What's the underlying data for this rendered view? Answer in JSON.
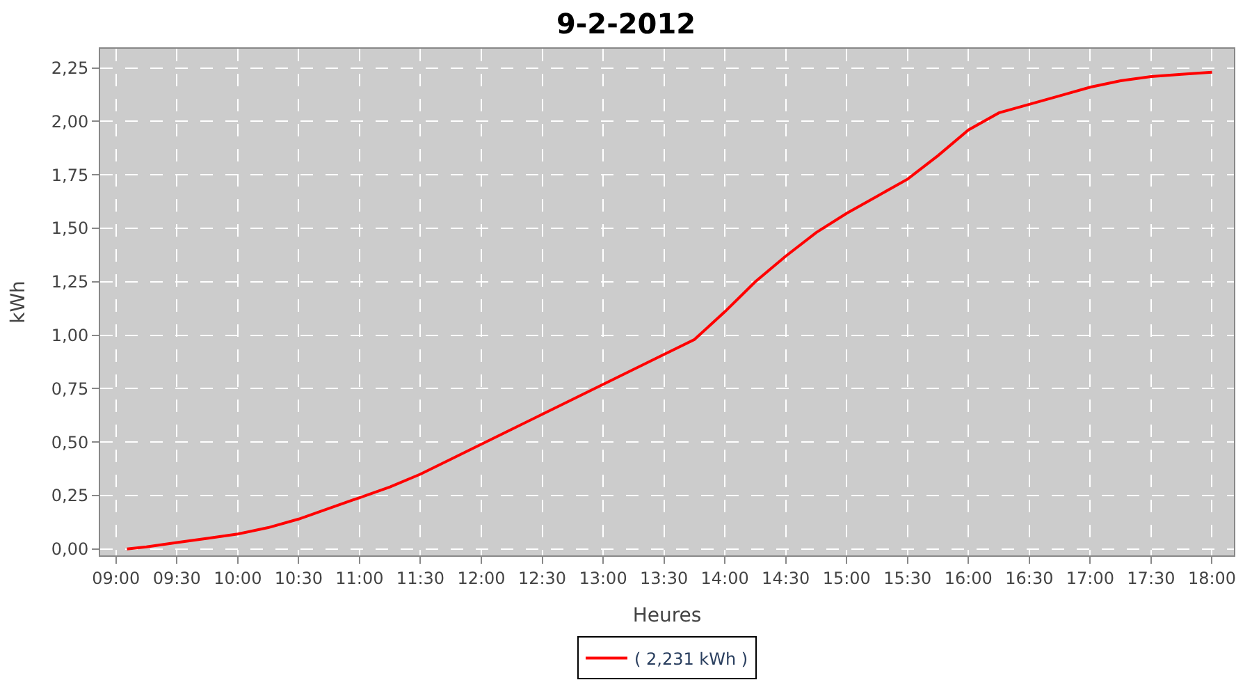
{
  "chart_data": {
    "type": "line",
    "title": "9-2-2012",
    "xlabel": "Heures",
    "ylabel": "kWh",
    "x": [
      9.09,
      9.25,
      9.5,
      9.75,
      10.0,
      10.25,
      10.5,
      10.75,
      11.0,
      11.25,
      11.5,
      11.75,
      12.0,
      12.25,
      12.5,
      12.75,
      13.0,
      13.25,
      13.5,
      13.75,
      14.0,
      14.25,
      14.5,
      14.75,
      15.0,
      15.25,
      15.5,
      15.75,
      16.0,
      16.25,
      16.5,
      16.75,
      17.0,
      17.25,
      17.5,
      17.75,
      18.0
    ],
    "series": [
      {
        "name": "( 2,231 kWh )",
        "color": "#ff0000",
        "values": [
          0.0,
          0.01,
          0.03,
          0.05,
          0.07,
          0.1,
          0.14,
          0.19,
          0.24,
          0.29,
          0.35,
          0.42,
          0.49,
          0.56,
          0.63,
          0.7,
          0.77,
          0.84,
          0.91,
          0.98,
          1.11,
          1.25,
          1.37,
          1.48,
          1.57,
          1.65,
          1.73,
          1.84,
          1.96,
          2.04,
          2.08,
          2.12,
          2.16,
          2.19,
          2.21,
          2.22,
          2.23
        ]
      }
    ],
    "xlim": [
      8.87,
      18.18
    ],
    "xticks": [
      {
        "value": 9,
        "label": "09:00"
      },
      {
        "value": 9.5,
        "label": "09:30"
      },
      {
        "value": 10,
        "label": "10:00"
      },
      {
        "value": 10.5,
        "label": "10:30"
      },
      {
        "value": 11,
        "label": "11:00"
      },
      {
        "value": 11.5,
        "label": "11:30"
      },
      {
        "value": 12,
        "label": "12:00"
      },
      {
        "value": 12.5,
        "label": "12:30"
      },
      {
        "value": 13,
        "label": "13:00"
      },
      {
        "value": 13.5,
        "label": "13:30"
      },
      {
        "value": 14,
        "label": "14:00"
      },
      {
        "value": 14.5,
        "label": "14:30"
      },
      {
        "value": 15,
        "label": "15:00"
      },
      {
        "value": 15.5,
        "label": "15:30"
      },
      {
        "value": 16,
        "label": "16:00"
      },
      {
        "value": 16.5,
        "label": "16:30"
      },
      {
        "value": 17,
        "label": "17:00"
      },
      {
        "value": 17.5,
        "label": "17:30"
      },
      {
        "value": 18,
        "label": "18:00"
      }
    ],
    "ylim": [
      -0.03,
      2.34
    ],
    "yticks": [
      {
        "value": 0,
        "label": "0,00"
      },
      {
        "value": 0.25,
        "label": "0,25"
      },
      {
        "value": 0.5,
        "label": "0,50"
      },
      {
        "value": 0.75,
        "label": "0,75"
      },
      {
        "value": 1.0,
        "label": "1,00"
      },
      {
        "value": 1.25,
        "label": "1,25"
      },
      {
        "value": 1.5,
        "label": "1,50"
      },
      {
        "value": 1.75,
        "label": "1,75"
      },
      {
        "value": 2.0,
        "label": "2,00"
      },
      {
        "value": 2.25,
        "label": "2,25"
      }
    ],
    "grid": true,
    "legend": "bottom",
    "line_style": "solid"
  }
}
